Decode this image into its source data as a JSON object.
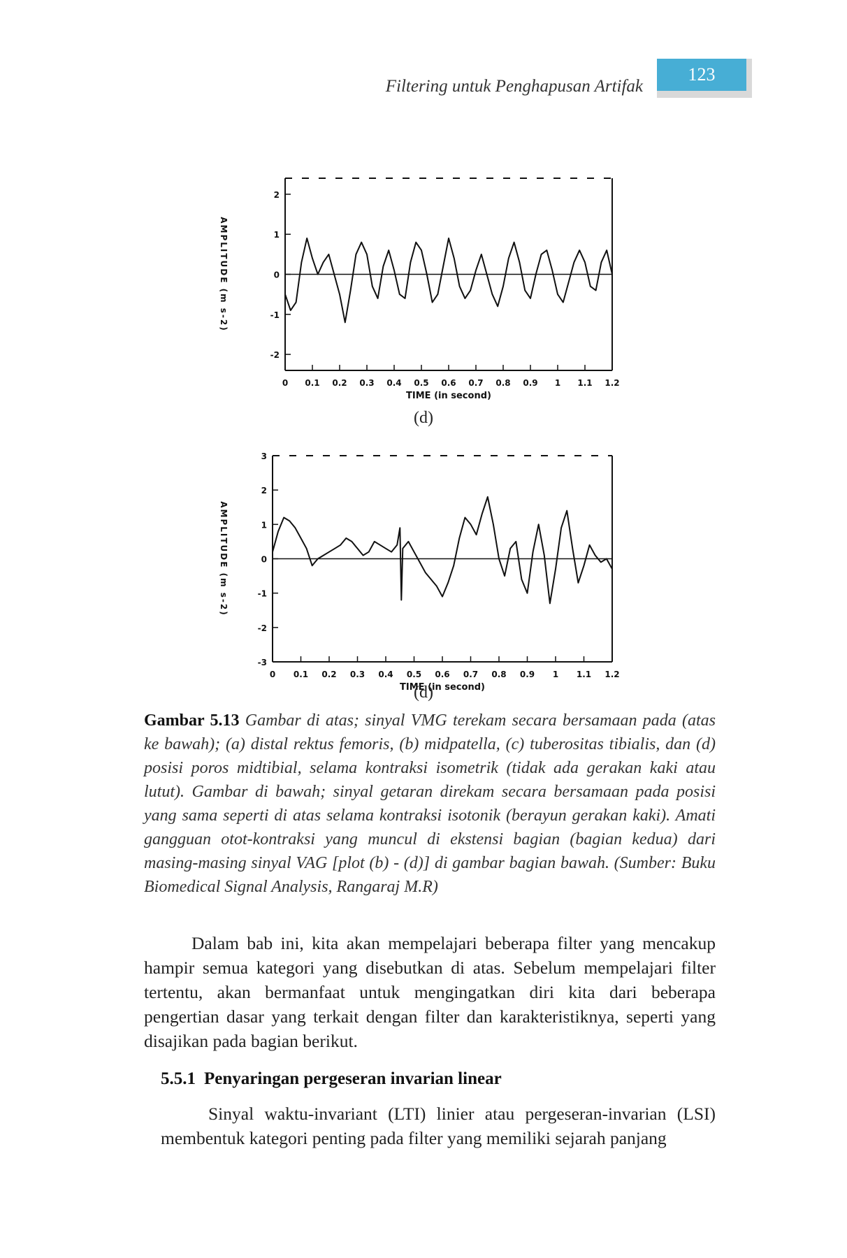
{
  "header": {
    "running_title": "Filtering untuk Penghapusan Artifak",
    "page_number": "123"
  },
  "figures": [
    {
      "panel_label": "(d)",
      "y_axis_label": "AMPLITUDE (m s-2)",
      "x_axis_label": "TIME (in second)",
      "chart_data": {
        "type": "line",
        "xlim": [
          0,
          1.2
        ],
        "ylim": [
          -2.4,
          2.4
        ],
        "x_ticks": [
          "0",
          "0.1",
          "0.2",
          "0.3",
          "0.4",
          "0.5",
          "0.6",
          "0.7",
          "0.8",
          "0.9",
          "1",
          "1.1",
          "1.2"
        ],
        "y_ticks": [
          "2",
          "1",
          "0",
          "-1",
          "-2"
        ],
        "series": [
          {
            "x": [
              0,
              0.02,
              0.04,
              0.06,
              0.08,
              0.1,
              0.12,
              0.14,
              0.16,
              0.18,
              0.2,
              0.22,
              0.24,
              0.26,
              0.28,
              0.3,
              0.32,
              0.34,
              0.36,
              0.38,
              0.4,
              0.42,
              0.44,
              0.46,
              0.48,
              0.5,
              0.52,
              0.54,
              0.56,
              0.58,
              0.6,
              0.62,
              0.64,
              0.66,
              0.68,
              0.7,
              0.72,
              0.74,
              0.76,
              0.78,
              0.8,
              0.82,
              0.84,
              0.86,
              0.88,
              0.9,
              0.92,
              0.94,
              0.96,
              0.98,
              1.0,
              1.02,
              1.04,
              1.06,
              1.08,
              1.1,
              1.12,
              1.14,
              1.16,
              1.18,
              1.2
            ],
            "y": [
              -0.5,
              -0.9,
              -0.7,
              0.3,
              0.9,
              0.4,
              0.0,
              0.3,
              0.5,
              0.0,
              -0.5,
              -1.2,
              -0.4,
              0.5,
              0.8,
              0.5,
              -0.3,
              -0.6,
              0.2,
              0.6,
              0.1,
              -0.5,
              -0.6,
              0.3,
              0.8,
              0.6,
              0.0,
              -0.7,
              -0.5,
              0.2,
              0.9,
              0.4,
              -0.3,
              -0.6,
              -0.4,
              0.1,
              0.5,
              0.0,
              -0.5,
              -0.8,
              -0.3,
              0.4,
              0.8,
              0.3,
              -0.4,
              -0.6,
              0.0,
              0.5,
              0.6,
              0.1,
              -0.5,
              -0.7,
              -0.2,
              0.3,
              0.6,
              0.3,
              -0.3,
              -0.4,
              0.3,
              0.6,
              0.0
            ]
          }
        ]
      }
    },
    {
      "panel_label": "(d)",
      "y_axis_label": "AMPLITUDE (m s-2)",
      "x_axis_label": "TIME (in second)",
      "chart_data": {
        "type": "line",
        "xlim": [
          0,
          1.2
        ],
        "ylim": [
          -3,
          3
        ],
        "x_ticks": [
          "0",
          "0.1",
          "0.2",
          "0.3",
          "0.4",
          "0.5",
          "0.6",
          "0.7",
          "0.8",
          "0.9",
          "1",
          "1.1",
          "1.2"
        ],
        "y_ticks": [
          "3",
          "2",
          "1",
          "0",
          "-1",
          "-2",
          "-3"
        ],
        "series": [
          {
            "x": [
              0,
              0.02,
              0.04,
              0.06,
              0.08,
              0.1,
              0.12,
              0.14,
              0.16,
              0.18,
              0.2,
              0.22,
              0.24,
              0.26,
              0.28,
              0.3,
              0.32,
              0.34,
              0.36,
              0.38,
              0.4,
              0.42,
              0.44,
              0.45,
              0.455,
              0.46,
              0.48,
              0.5,
              0.52,
              0.54,
              0.56,
              0.58,
              0.6,
              0.62,
              0.64,
              0.66,
              0.68,
              0.7,
              0.72,
              0.74,
              0.76,
              0.78,
              0.8,
              0.82,
              0.84,
              0.86,
              0.88,
              0.9,
              0.92,
              0.94,
              0.96,
              0.98,
              1.0,
              1.02,
              1.04,
              1.06,
              1.08,
              1.1,
              1.12,
              1.14,
              1.16,
              1.18,
              1.2
            ],
            "y": [
              0.2,
              0.8,
              1.2,
              1.1,
              0.9,
              0.6,
              0.3,
              -0.2,
              0.0,
              0.1,
              0.2,
              0.3,
              0.4,
              0.6,
              0.5,
              0.3,
              0.1,
              0.2,
              0.5,
              0.4,
              0.3,
              0.2,
              0.4,
              0.9,
              -1.2,
              0.3,
              0.5,
              0.2,
              -0.1,
              -0.4,
              -0.6,
              -0.8,
              -1.1,
              -0.7,
              -0.2,
              0.6,
              1.2,
              1.0,
              0.7,
              1.3,
              1.8,
              1.0,
              0.0,
              -0.5,
              0.3,
              0.5,
              -0.6,
              -1.0,
              0.2,
              1.0,
              0.1,
              -1.3,
              -0.3,
              0.9,
              1.4,
              0.3,
              -0.7,
              -0.2,
              0.4,
              0.1,
              -0.1,
              0.0,
              -0.3
            ]
          }
        ]
      }
    }
  ],
  "caption": {
    "label": "Gambar 5.13",
    "text": "Gambar di atas; sinyal VMG terekam secara bersamaan pada (atas ke bawah); (a) distal rektus femoris, (b) midpatella, (c) tuberositas tibialis, dan (d) posisi poros midtibial, selama kontraksi isometrik (tidak ada gerakan kaki atau lutut). Gambar di bawah; sinyal getaran direkam secara bersamaan pada posisi yang sama seperti di atas selama kontraksi isotonik (berayun gerakan kaki). Amati gangguan otot-kontraksi yang muncul di ekstensi bagian (bagian kedua) dari masing-masing sinyal VAG [plot (b) - (d)] di gambar bagian bawah. (Sumber: Buku Biomedical Signal Analysis, Rangaraj M.R)"
  },
  "body": {
    "paragraph_1": "Dalam bab ini, kita akan mempelajari beberapa filter yang mencakup hampir semua kategori yang disebutkan di atas. Sebelum mempelajari filter tertentu, akan bermanfaat untuk mengingatkan diri kita dari beberapa pengertian dasar yang terkait dengan filter dan karakteristiknya, seperti yang disajikan pada bagian berikut.",
    "section_number": "5.5.1",
    "section_title": "Penyaringan pergeseran invarian linear",
    "paragraph_2": "Sinyal waktu-invariant (LTI) linier atau pergeseran-invarian (LSI) membentuk kategori penting pada filter yang memiliki sejarah panjang"
  }
}
